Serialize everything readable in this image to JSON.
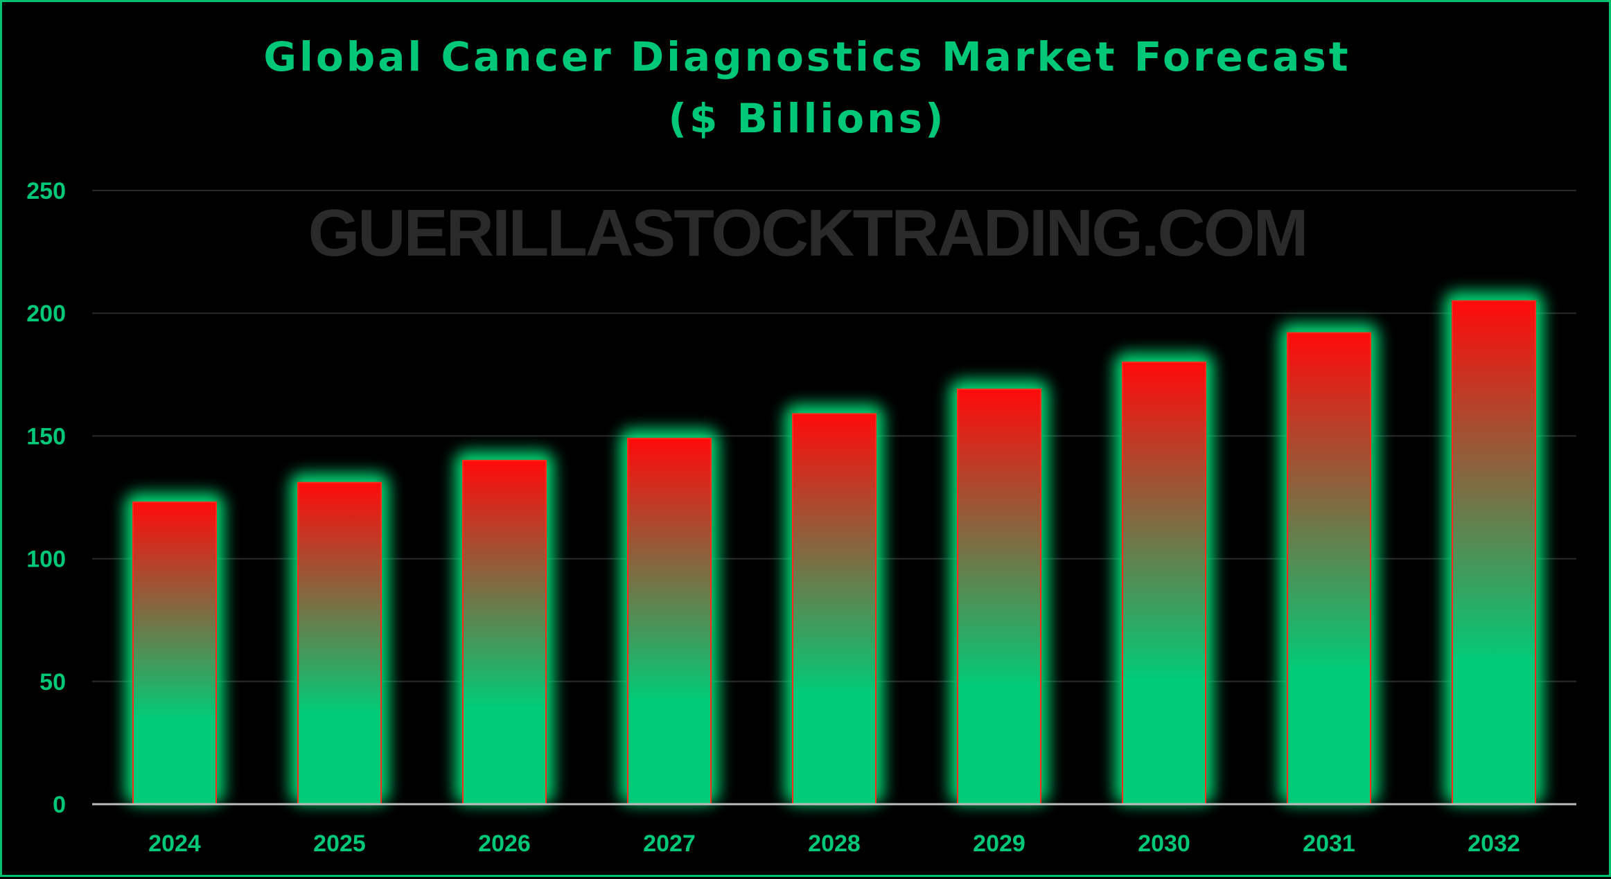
{
  "colors": {
    "background": "#000000",
    "text": "#00c878",
    "frame": "#00c26e",
    "gridline": "#2a2a2a",
    "axis": "#bdbdbd",
    "bar_top": "#ff0a0a",
    "bar_bottom": "#00cc78",
    "bar_border": "#ff2a1a",
    "glow": "#00e07a",
    "watermark": "#2a2a2a"
  },
  "chart_data": {
    "type": "bar",
    "title": "Global Cancer Diagnostics Market Forecast",
    "subtitle": "($ Billions)",
    "watermark": "GUERILLASTOCKTRADING.COM",
    "xlabel": "",
    "ylabel": "",
    "categories": [
      "2024",
      "2025",
      "2026",
      "2027",
      "2028",
      "2029",
      "2030",
      "2031",
      "2032"
    ],
    "values": [
      123,
      131,
      140,
      149,
      159,
      169,
      180,
      192,
      205
    ],
    "ylim": [
      0,
      250
    ],
    "yticks": [
      0,
      50,
      100,
      150,
      200,
      250
    ],
    "grid": true,
    "legend": "none"
  }
}
